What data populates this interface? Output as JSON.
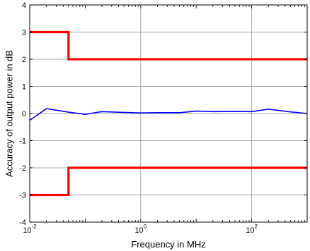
{
  "chart_data": {
    "type": "line",
    "xlabel": "Frequency in MHz",
    "ylabel": "Accuracy of output power in dB",
    "xscale": "log",
    "xlim": [
      0.01,
      1000
    ],
    "ylim": [
      -4,
      4
    ],
    "grid": true,
    "x_ticks": [
      {
        "base": "10",
        "exp": "-2"
      },
      {
        "base": "10",
        "exp": "0"
      },
      {
        "base": "10",
        "exp": "2"
      }
    ],
    "y_ticks": [
      "4",
      "3",
      "2",
      "1",
      "0",
      "-1",
      "-2",
      "-3",
      "-4"
    ],
    "series": [
      {
        "color": "#ff0000",
        "style": "upper-limit",
        "points": [
          [
            0.01,
            3
          ],
          [
            0.05,
            3
          ],
          [
            0.05,
            2
          ],
          [
            1000,
            2
          ]
        ]
      },
      {
        "color": "#ff0000",
        "style": "lower-limit",
        "points": [
          [
            0.01,
            -3
          ],
          [
            0.05,
            -3
          ],
          [
            0.05,
            -2
          ],
          [
            1000,
            -2
          ]
        ]
      },
      {
        "color": "#0000ff",
        "style": "measured",
        "points": [
          [
            0.01,
            -0.25
          ],
          [
            0.02,
            0.18
          ],
          [
            0.05,
            0.05
          ],
          [
            0.1,
            -0.03
          ],
          [
            0.2,
            0.07
          ],
          [
            0.5,
            0.04
          ],
          [
            1,
            0.02
          ],
          [
            2,
            0.03
          ],
          [
            5,
            0.03
          ],
          [
            10,
            0.09
          ],
          [
            20,
            0.07
          ],
          [
            50,
            0.08
          ],
          [
            100,
            0.07
          ],
          [
            200,
            0.16
          ],
          [
            500,
            0.06
          ],
          [
            1000,
            0.0
          ]
        ]
      }
    ]
  }
}
